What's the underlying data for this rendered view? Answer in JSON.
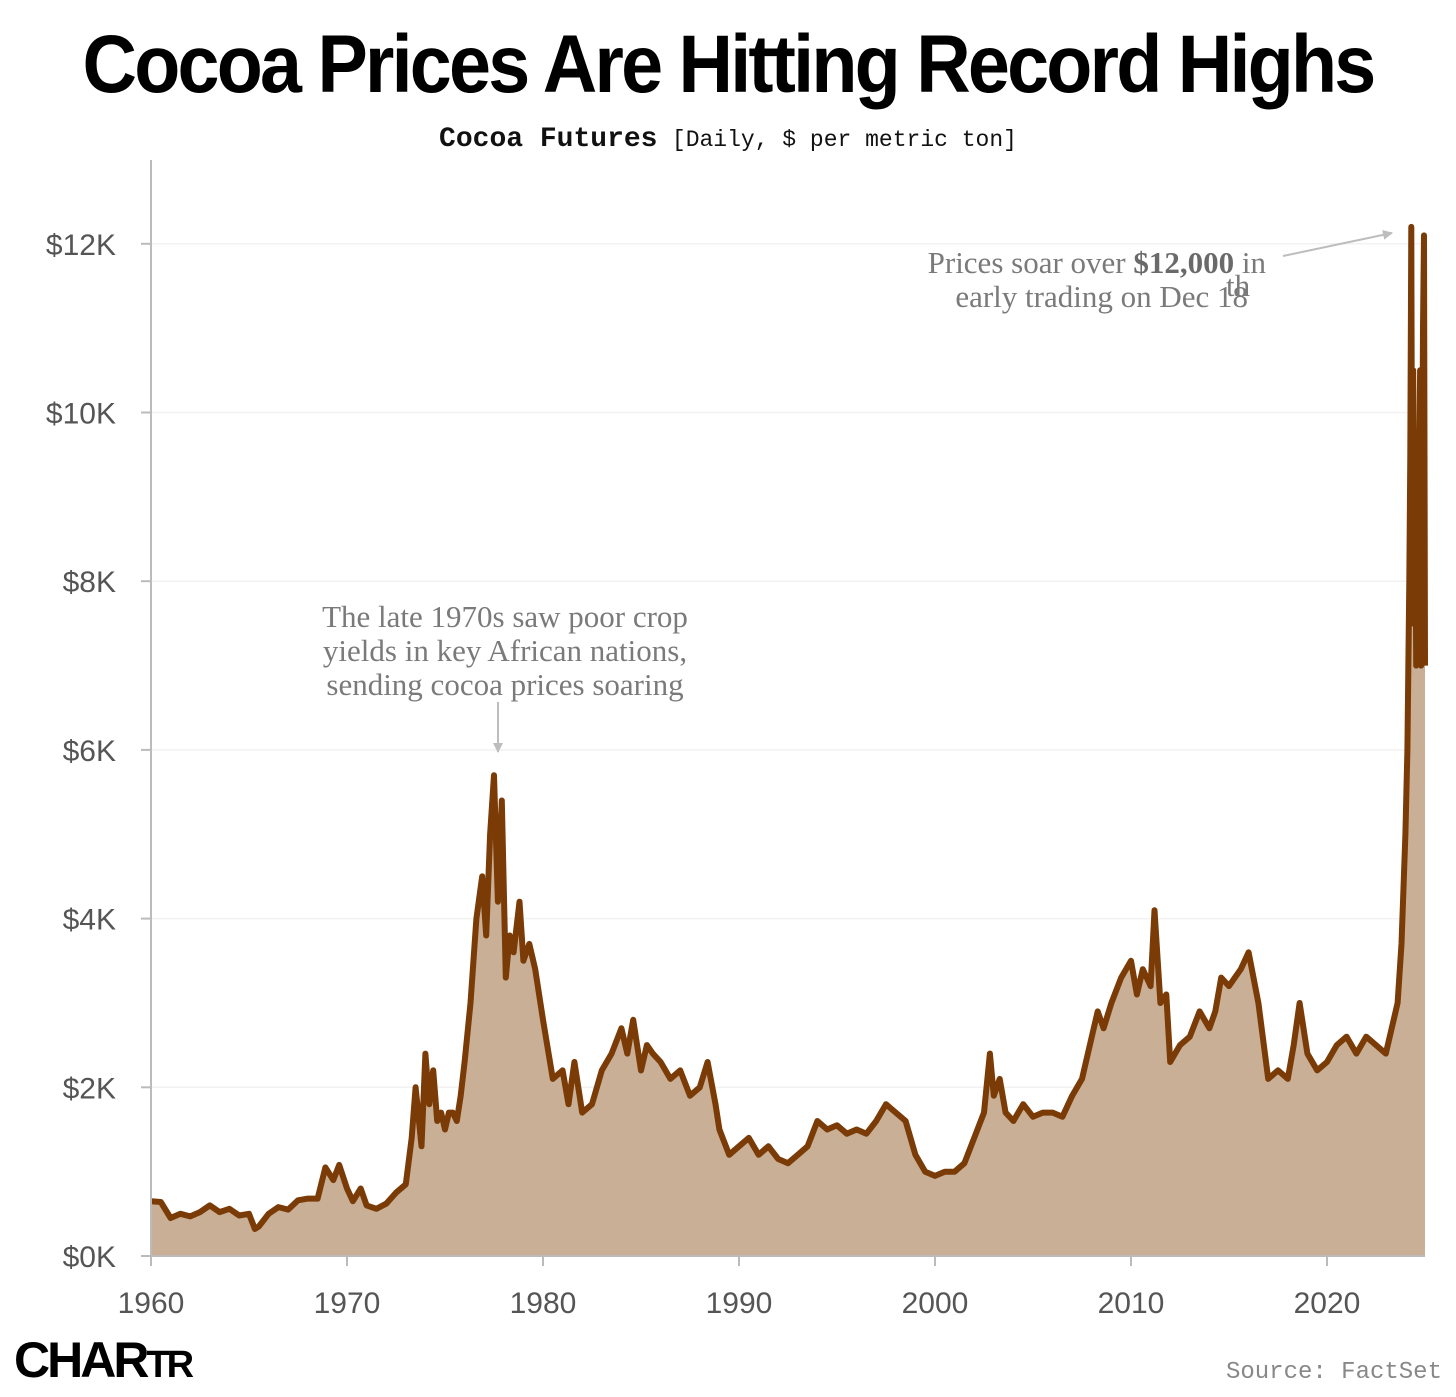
{
  "header": {
    "title": "Cocoa Prices Are Hitting Record Highs",
    "subtitle_main": "Cocoa Futures",
    "subtitle_detail": "[Daily, $ per metric ton]"
  },
  "footer": {
    "logo_main": "CHAR",
    "logo_small": "TR",
    "source": "Source: FactSet"
  },
  "colors": {
    "line": "#7a3b06",
    "area": "#c9af95",
    "axis": "#bbbbbb",
    "grid": "#f2f2f2",
    "annotation": "#7a7a7a",
    "arrow": "#bdbdbd"
  },
  "chart_data": {
    "type": "area",
    "title": "Cocoa Futures",
    "unit": "$ per metric ton",
    "xlim": [
      1960,
      2025
    ],
    "ylim": [
      0,
      13000
    ],
    "grid": true,
    "legend": "none",
    "x_ticks": [
      1960,
      1970,
      1980,
      1990,
      2000,
      2010,
      2020
    ],
    "x_tick_labels": [
      "1960",
      "1970",
      "1980",
      "1990",
      "2000",
      "2010",
      "2020"
    ],
    "y_ticks": [
      0,
      2000,
      4000,
      6000,
      8000,
      10000,
      12000
    ],
    "y_tick_labels": [
      "$0K",
      "$2K",
      "$4K",
      "$6K",
      "$8K",
      "$10K",
      "$12K"
    ],
    "series": [
      {
        "x": [
          1960,
          1960.5,
          1961,
          1961.5,
          1962,
          1962.5,
          1963,
          1963.5,
          1964,
          1964.5,
          1965,
          1965.3,
          1965.5,
          1966,
          1966.5,
          1967,
          1967.5,
          1968,
          1968.5,
          1968.9,
          1969.3,
          1969.6,
          1970,
          1970.3,
          1970.7,
          1971,
          1971.5,
          1972,
          1972.5,
          1973,
          1973.3,
          1973.5,
          1973.8,
          1974,
          1974.2,
          1974.4,
          1974.6,
          1974.8,
          1975,
          1975.2,
          1975.4,
          1975.6,
          1975.8,
          1976,
          1976.3,
          1976.6,
          1976.9,
          1977.1,
          1977.3,
          1977.5,
          1977.7,
          1977.9,
          1978.1,
          1978.3,
          1978.5,
          1978.8,
          1979,
          1979.3,
          1979.6,
          1980,
          1980.5,
          1981,
          1981.3,
          1981.6,
          1982,
          1982.5,
          1983,
          1983.5,
          1984,
          1984.3,
          1984.6,
          1985,
          1985.3,
          1985.6,
          1986,
          1986.5,
          1987,
          1987.5,
          1988,
          1988.4,
          1988.8,
          1989,
          1989.5,
          1990,
          1990.5,
          1991,
          1991.5,
          1992,
          1992.5,
          1993,
          1993.5,
          1994,
          1994.5,
          1995,
          1995.5,
          1996,
          1996.5,
          1997,
          1997.5,
          1998,
          1998.5,
          1999,
          1999.5,
          2000,
          2000.5,
          2001,
          2001.5,
          2002,
          2002.5,
          2002.8,
          2003,
          2003.3,
          2003.6,
          2004,
          2004.5,
          2005,
          2005.5,
          2006,
          2006.5,
          2007,
          2007.5,
          2008,
          2008.3,
          2008.6,
          2009,
          2009.5,
          2010,
          2010.3,
          2010.6,
          2011,
          2011.2,
          2011.5,
          2011.8,
          2012,
          2012.5,
          2013,
          2013.5,
          2014,
          2014.3,
          2014.6,
          2015,
          2015.3,
          2015.6,
          2016,
          2016.5,
          2017,
          2017.5,
          2018,
          2018.3,
          2018.6,
          2019,
          2019.5,
          2020,
          2020.5,
          2021,
          2021.5,
          2022,
          2022.5,
          2023,
          2023.3,
          2023.6,
          2023.8,
          2024,
          2024.1,
          2024.2,
          2024.25,
          2024.3,
          2024.35,
          2024.4,
          2024.45,
          2024.5,
          2024.55,
          2024.6,
          2024.65,
          2024.7,
          2024.75,
          2024.8,
          2024.85,
          2024.9,
          2024.95,
          2025
        ],
        "y": [
          650,
          640,
          450,
          500,
          470,
          520,
          600,
          520,
          560,
          480,
          500,
          320,
          350,
          500,
          580,
          550,
          660,
          680,
          680,
          1050,
          900,
          1080,
          800,
          650,
          800,
          600,
          560,
          620,
          750,
          850,
          1400,
          2000,
          1300,
          2400,
          1800,
          2200,
          1600,
          1700,
          1500,
          1700,
          1700,
          1600,
          1900,
          2300,
          3000,
          4000,
          4500,
          3800,
          5000,
          5700,
          4200,
          5400,
          3300,
          3800,
          3600,
          4200,
          3500,
          3700,
          3400,
          2800,
          2100,
          2200,
          1800,
          2300,
          1700,
          1800,
          2200,
          2400,
          2700,
          2400,
          2800,
          2200,
          2500,
          2400,
          2300,
          2100,
          2200,
          1900,
          2000,
          2300,
          1800,
          1500,
          1200,
          1300,
          1400,
          1200,
          1300,
          1150,
          1100,
          1200,
          1300,
          1600,
          1500,
          1550,
          1450,
          1500,
          1450,
          1600,
          1800,
          1700,
          1600,
          1200,
          1000,
          950,
          1000,
          1000,
          1100,
          1400,
          1700,
          2400,
          1900,
          2100,
          1700,
          1600,
          1800,
          1650,
          1700,
          1700,
          1650,
          1900,
          2100,
          2600,
          2900,
          2700,
          3000,
          3300,
          3500,
          3100,
          3400,
          3200,
          4100,
          3000,
          3100,
          2300,
          2500,
          2600,
          2900,
          2700,
          2900,
          3300,
          3200,
          3300,
          3400,
          3600,
          3000,
          2100,
          2200,
          2100,
          2500,
          3000,
          2400,
          2200,
          2300,
          2500,
          2600,
          2400,
          2600,
          2500,
          2400,
          2700,
          3000,
          3700,
          5000,
          6000,
          8000,
          9500,
          12200,
          7500,
          10500,
          8000,
          9500,
          7000,
          9000,
          7200,
          9300,
          10500,
          7000,
          9000,
          11000,
          12100,
          7000
        ]
      }
    ],
    "annotations": [
      {
        "text_lines": [
          "The late 1970s saw poor crop",
          "yields in key African nations,",
          "sending cocoa prices soaring"
        ],
        "points_to": {
          "x": 1977.7,
          "y": 5800
        }
      },
      {
        "text_before": "Prices soar over ",
        "text_bold": "$12,000",
        "text_after": " in",
        "line2": "early trading on Dec 18",
        "line2_superscript": "th",
        "points_to": {
          "x": 2024.1,
          "y": 12200
        }
      }
    ]
  }
}
